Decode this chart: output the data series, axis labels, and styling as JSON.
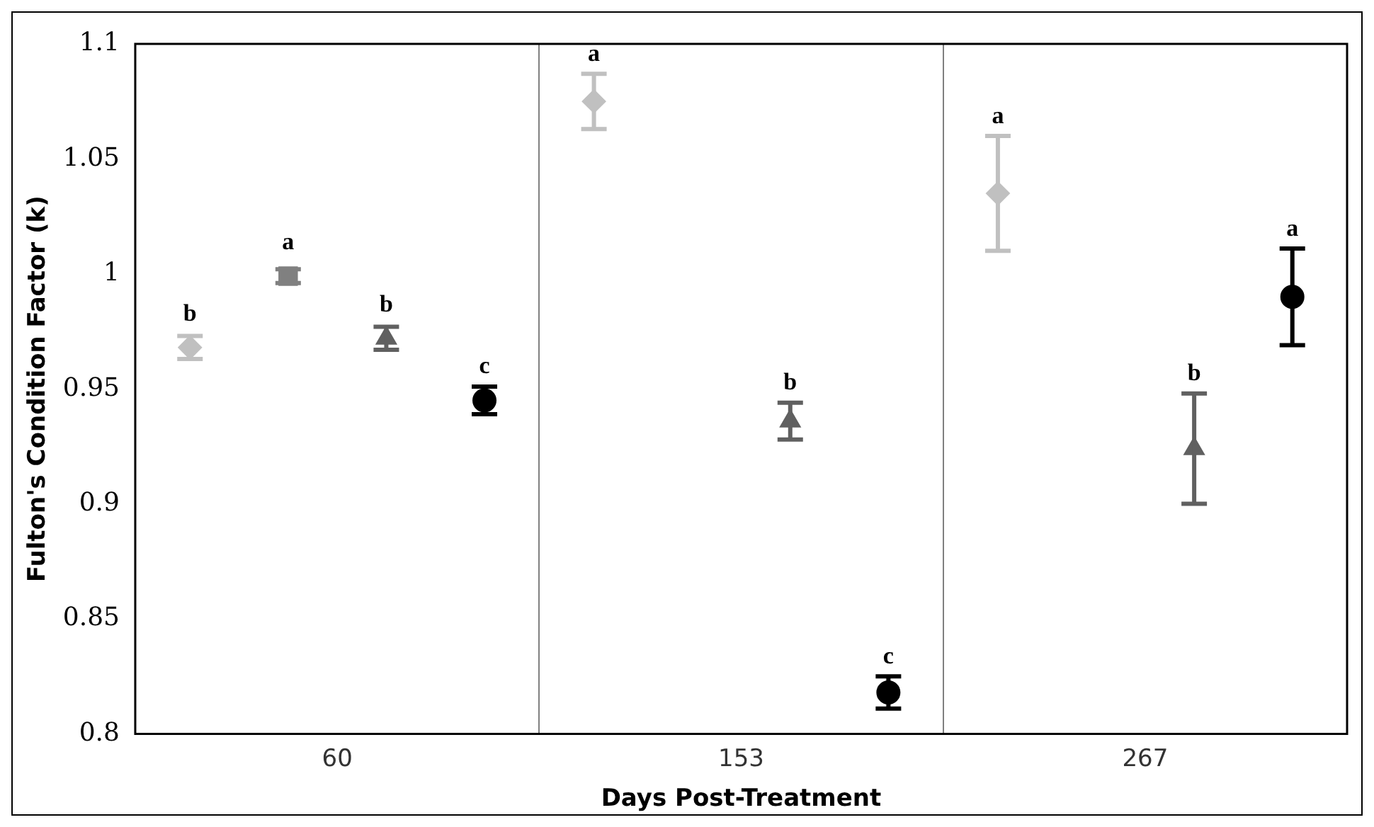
{
  "chart_data": {
    "type": "scatter",
    "xlabel": "Days Post-Treatment",
    "ylabel": "Fulton's Condition Factor (k)",
    "categories": [
      "60",
      "153",
      "267"
    ],
    "ylim": [
      0.8,
      1.1
    ],
    "yticks": [
      0.8,
      0.85,
      0.9,
      0.95,
      1,
      1.05,
      1.1
    ],
    "grid": "x",
    "series": [
      {
        "color": "#c0c0c0",
        "marker": "diamond",
        "values": [
          0.968,
          1.075,
          1.035
        ],
        "errors": [
          0.005,
          0.012,
          0.025
        ],
        "value_labels": [
          "b",
          "a",
          "a"
        ]
      },
      {
        "color": "#808080",
        "marker": "square",
        "values": [
          0.999,
          null,
          null
        ],
        "errors": [
          0.003,
          null,
          null
        ],
        "value_labels": [
          "a",
          null,
          null
        ]
      },
      {
        "color": "#606060",
        "marker": "triangle",
        "values": [
          0.972,
          0.936,
          0.924
        ],
        "errors": [
          0.005,
          0.008,
          0.024
        ],
        "value_labels": [
          "b",
          "b",
          "b"
        ]
      },
      {
        "color": "#000000",
        "marker": "circle",
        "values": [
          0.945,
          0.818,
          0.99
        ],
        "errors": [
          0.006,
          0.007,
          0.021
        ],
        "value_labels": [
          "c",
          "c",
          "a"
        ]
      }
    ]
  }
}
